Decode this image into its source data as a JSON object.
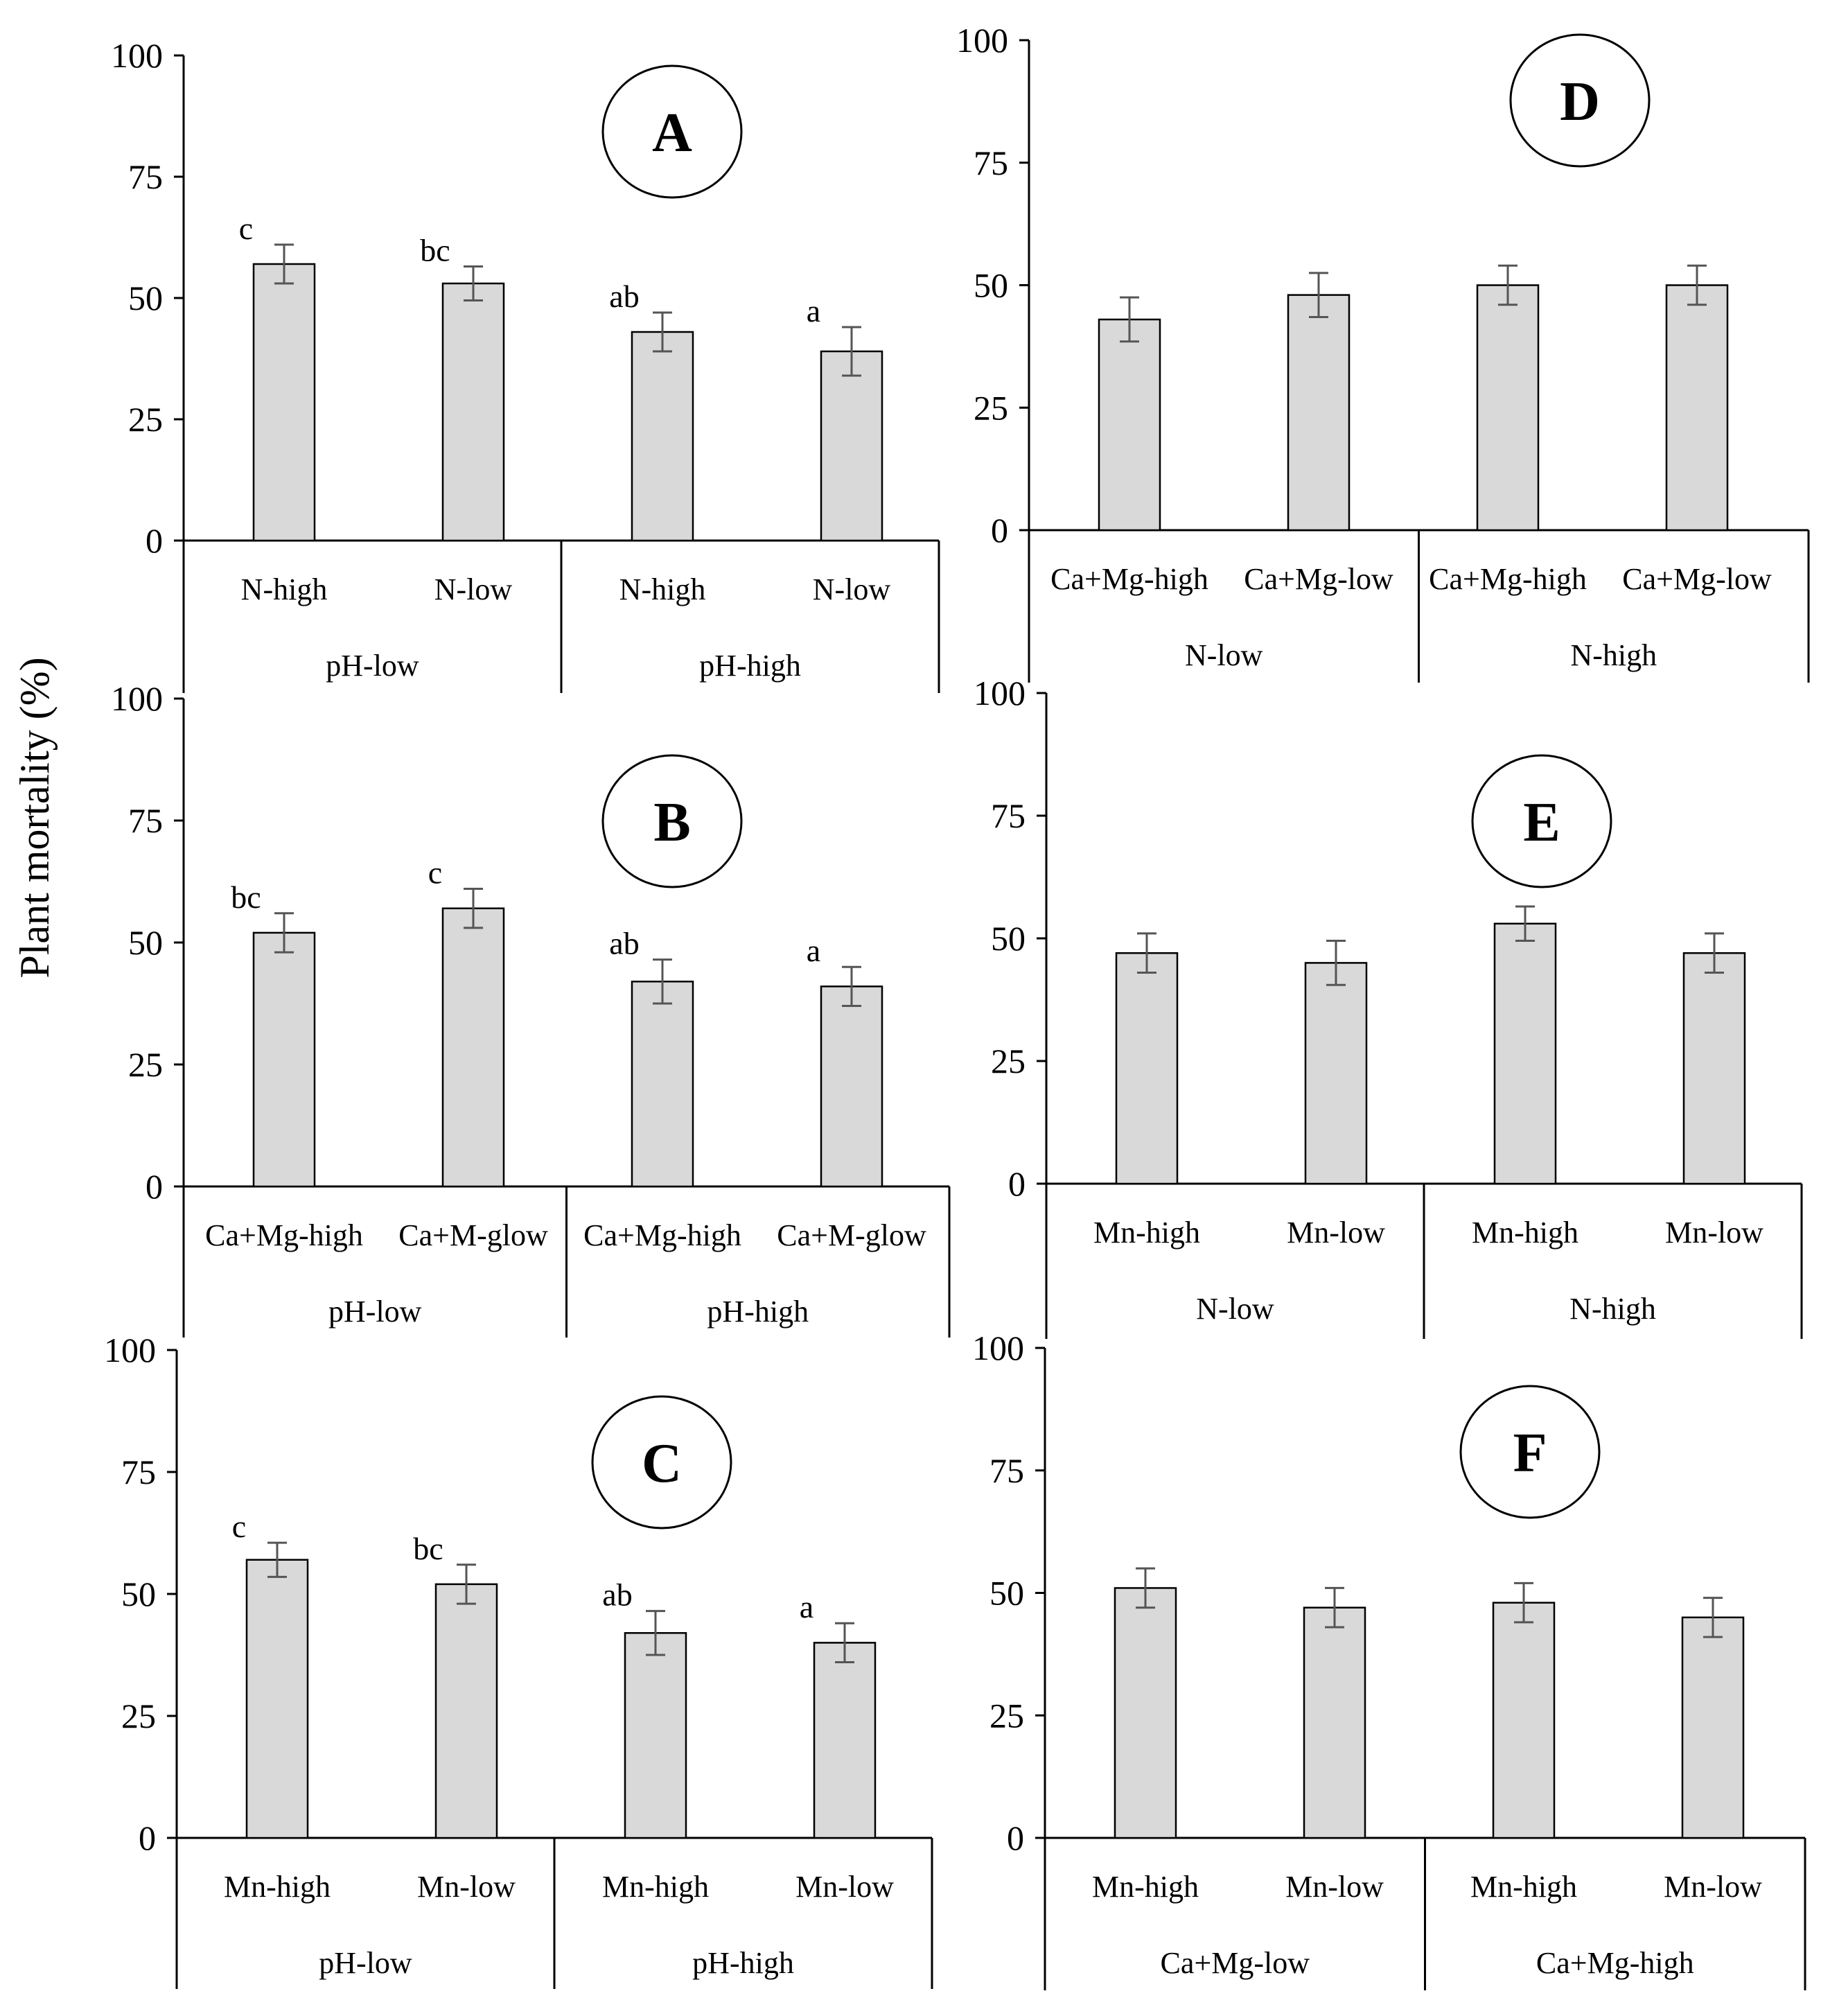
{
  "figure": {
    "ylabel": "Plant mortality  (%)"
  },
  "colors": {
    "bar_fill": "#d9d9d9",
    "bar_stroke": "#000000",
    "axis": "#000000",
    "error_bar": "#555555"
  },
  "chart_data": [
    {
      "type": "bar",
      "panel": "A",
      "ylim": [
        0,
        100
      ],
      "yticks": [
        "0",
        "25",
        "50",
        "75",
        "100"
      ],
      "categories": [
        "N-high",
        "N-low",
        "N-high",
        "N-low"
      ],
      "groups": [
        "pH-low",
        "pH-high"
      ],
      "values": [
        57,
        53,
        43,
        39
      ],
      "errors": [
        4,
        3.5,
        4,
        5
      ],
      "significance": [
        "c",
        "bc",
        "ab",
        "a"
      ]
    },
    {
      "type": "bar",
      "panel": "B",
      "ylim": [
        0,
        100
      ],
      "yticks": [
        "0",
        "25",
        "50",
        "75",
        "100"
      ],
      "categories": [
        "Ca+Mg-high",
        "Ca+M-glow",
        "Ca+Mg-high",
        "Ca+M-glow"
      ],
      "groups": [
        "pH-low",
        "pH-high"
      ],
      "values": [
        52,
        57,
        42,
        41
      ],
      "errors": [
        4,
        4,
        4.5,
        4
      ],
      "significance": [
        "bc",
        "c",
        "ab",
        "a"
      ]
    },
    {
      "type": "bar",
      "panel": "C",
      "ylim": [
        0,
        100
      ],
      "yticks": [
        "0",
        "25",
        "50",
        "75",
        "100"
      ],
      "categories": [
        "Mn-high",
        "Mn-low",
        "Mn-high",
        "Mn-low"
      ],
      "groups": [
        "pH-low",
        "pH-high"
      ],
      "values": [
        57,
        52,
        42,
        40
      ],
      "errors": [
        3.5,
        4,
        4.5,
        4
      ],
      "significance": [
        "c",
        "bc",
        "ab",
        "a"
      ]
    },
    {
      "type": "bar",
      "panel": "D",
      "ylim": [
        0,
        100
      ],
      "yticks": [
        "0",
        "25",
        "50",
        "75",
        "100"
      ],
      "categories": [
        "Ca+Mg-high",
        "Ca+Mg-low",
        "Ca+Mg-high",
        "Ca+Mg-low"
      ],
      "groups": [
        "N-low",
        "N-high"
      ],
      "values": [
        43,
        48,
        50,
        50
      ],
      "errors": [
        4.5,
        4.5,
        4,
        4
      ],
      "significance": [
        "",
        "",
        "",
        ""
      ]
    },
    {
      "type": "bar",
      "panel": "E",
      "ylim": [
        0,
        100
      ],
      "yticks": [
        "0",
        "25",
        "50",
        "75",
        "100"
      ],
      "categories": [
        "Mn-high",
        "Mn-low",
        "Mn-high",
        "Mn-low"
      ],
      "groups": [
        "N-low",
        "N-high"
      ],
      "values": [
        47,
        45,
        53,
        47
      ],
      "errors": [
        4,
        4.5,
        3.5,
        4
      ],
      "significance": [
        "",
        "",
        "",
        ""
      ]
    },
    {
      "type": "bar",
      "panel": "F",
      "ylim": [
        0,
        100
      ],
      "yticks": [
        "0",
        "25",
        "50",
        "75",
        "100"
      ],
      "categories": [
        "Mn-high",
        "Mn-low",
        "Mn-high",
        "Mn-low"
      ],
      "groups": [
        "Ca+Mg-low",
        "Ca+Mg-high"
      ],
      "values": [
        51,
        47,
        48,
        45
      ],
      "errors": [
        4,
        4,
        4,
        4
      ],
      "significance": [
        "",
        "",
        "",
        ""
      ]
    }
  ]
}
